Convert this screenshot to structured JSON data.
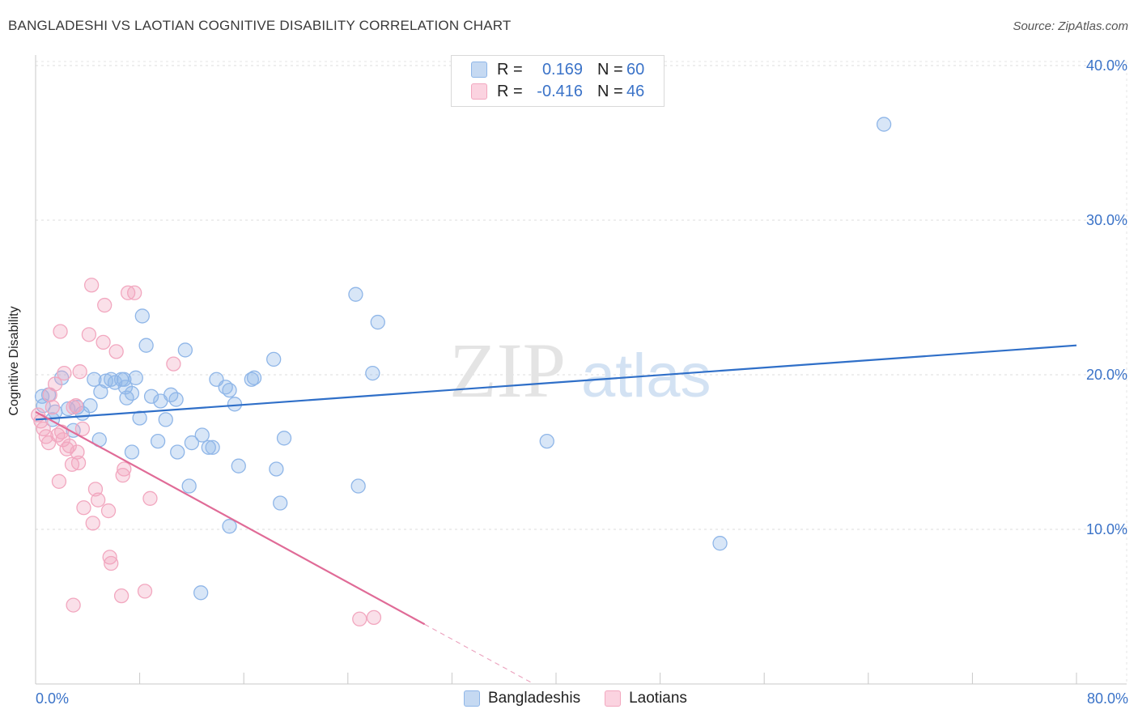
{
  "title": "BANGLADESHI VS LAOTIAN COGNITIVE DISABILITY CORRELATION CHART",
  "source": "Source: ZipAtlas.com",
  "watermark": {
    "zip": "ZIP",
    "atlas": "atlas"
  },
  "legend_stats": [
    {
      "series": "Bangladeshis",
      "r_label": "R =",
      "r_value": "0.169",
      "n_label": "N =",
      "n_value": "60"
    },
    {
      "series": "Laotians",
      "r_label": "R =",
      "r_value": "-0.416",
      "n_label": "N =",
      "n_value": "46"
    }
  ],
  "x_axis": {
    "min_label": "0.0%",
    "max_label": "80.0%"
  },
  "chart_data": {
    "type": "scatter",
    "title": "BANGLADESHI VS LAOTIAN COGNITIVE DISABILITY CORRELATION CHART",
    "xlabel": "",
    "ylabel": "Cognitive Disability",
    "xlim": [
      0,
      80
    ],
    "ylim": [
      0,
      42
    ],
    "y_ticks": [
      10,
      20,
      30,
      40
    ],
    "y_tick_labels": [
      "10.0%",
      "20.0%",
      "30.0%",
      "40.0%"
    ],
    "grid": true,
    "legend_position": "bottom",
    "series": [
      {
        "name": "Bangladeshis",
        "color": "#8fb6e8",
        "line_color": "#2f6fc8",
        "trend": {
          "x": [
            0,
            80
          ],
          "y": [
            17.1,
            21.9
          ],
          "dashed_from": null
        },
        "points": [
          [
            0.5,
            18.6
          ],
          [
            0.6,
            18.0
          ],
          [
            1.0,
            18.7
          ],
          [
            1.3,
            17.1
          ],
          [
            1.5,
            17.6
          ],
          [
            2.0,
            19.8
          ],
          [
            2.5,
            17.8
          ],
          [
            2.9,
            16.4
          ],
          [
            3.2,
            17.9
          ],
          [
            3.6,
            17.5
          ],
          [
            4.2,
            18.0
          ],
          [
            4.5,
            19.7
          ],
          [
            4.9,
            15.8
          ],
          [
            5.0,
            18.9
          ],
          [
            5.4,
            19.6
          ],
          [
            5.8,
            19.7
          ],
          [
            6.1,
            19.5
          ],
          [
            6.6,
            19.7
          ],
          [
            6.9,
            19.2
          ],
          [
            7.0,
            18.5
          ],
          [
            7.4,
            15.0
          ],
          [
            7.7,
            19.8
          ],
          [
            8.0,
            17.2
          ],
          [
            8.2,
            23.8
          ],
          [
            8.5,
            21.9
          ],
          [
            8.9,
            18.6
          ],
          [
            9.4,
            15.7
          ],
          [
            9.6,
            18.3
          ],
          [
            10.0,
            17.1
          ],
          [
            10.4,
            18.7
          ],
          [
            10.8,
            18.4
          ],
          [
            10.9,
            15.0
          ],
          [
            11.5,
            21.6
          ],
          [
            11.8,
            12.8
          ],
          [
            12.0,
            15.6
          ],
          [
            12.8,
            16.1
          ],
          [
            13.3,
            15.3
          ],
          [
            13.6,
            15.3
          ],
          [
            13.9,
            19.7
          ],
          [
            14.6,
            19.2
          ],
          [
            14.9,
            19.0
          ],
          [
            15.3,
            18.1
          ],
          [
            15.6,
            14.1
          ],
          [
            16.6,
            19.7
          ],
          [
            16.8,
            19.8
          ],
          [
            18.3,
            21.0
          ],
          [
            18.5,
            13.9
          ],
          [
            18.8,
            11.7
          ],
          [
            19.1,
            15.9
          ],
          [
            24.6,
            25.2
          ],
          [
            24.8,
            12.8
          ],
          [
            25.9,
            20.1
          ],
          [
            26.3,
            23.4
          ],
          [
            39.3,
            15.7
          ],
          [
            52.6,
            9.1
          ],
          [
            65.2,
            36.2
          ],
          [
            14.9,
            10.2
          ],
          [
            12.7,
            5.9
          ],
          [
            7.4,
            18.8
          ],
          [
            6.8,
            19.7
          ]
        ]
      },
      {
        "name": "Laotians",
        "color": "#f2a7bf",
        "line_color": "#e06b97",
        "trend": {
          "x": [
            0,
            38.3
          ],
          "y": [
            17.6,
            0
          ],
          "dashed_from": 29.9
        },
        "points": [
          [
            0.2,
            17.4
          ],
          [
            0.4,
            17.0
          ],
          [
            0.6,
            16.5
          ],
          [
            0.8,
            16.0
          ],
          [
            1.0,
            15.6
          ],
          [
            1.1,
            18.7
          ],
          [
            1.3,
            17.9
          ],
          [
            1.5,
            19.4
          ],
          [
            1.7,
            16.1
          ],
          [
            1.8,
            13.1
          ],
          [
            1.9,
            22.8
          ],
          [
            2.0,
            16.3
          ],
          [
            2.1,
            15.8
          ],
          [
            2.2,
            20.1
          ],
          [
            2.4,
            15.2
          ],
          [
            2.6,
            15.4
          ],
          [
            2.8,
            14.2
          ],
          [
            2.9,
            17.9
          ],
          [
            3.1,
            18.0
          ],
          [
            3.2,
            15.0
          ],
          [
            3.3,
            14.3
          ],
          [
            3.4,
            20.2
          ],
          [
            3.6,
            16.5
          ],
          [
            3.7,
            11.4
          ],
          [
            4.1,
            22.6
          ],
          [
            4.3,
            25.8
          ],
          [
            4.4,
            10.4
          ],
          [
            4.6,
            12.6
          ],
          [
            4.8,
            11.9
          ],
          [
            5.2,
            22.1
          ],
          [
            5.3,
            24.5
          ],
          [
            5.6,
            11.2
          ],
          [
            5.7,
            8.2
          ],
          [
            5.8,
            7.8
          ],
          [
            6.2,
            21.5
          ],
          [
            6.7,
            13.5
          ],
          [
            6.8,
            13.9
          ],
          [
            7.1,
            25.3
          ],
          [
            7.6,
            25.3
          ],
          [
            8.8,
            12.0
          ],
          [
            10.6,
            20.7
          ],
          [
            2.9,
            5.1
          ],
          [
            6.6,
            5.7
          ],
          [
            8.4,
            6.0
          ],
          [
            24.9,
            4.2
          ],
          [
            26.0,
            4.3
          ]
        ]
      }
    ]
  }
}
